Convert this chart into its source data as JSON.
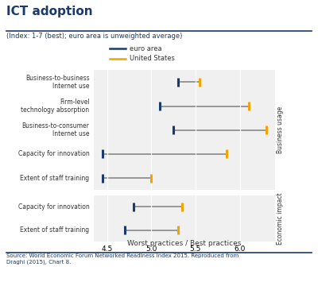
{
  "title": "ICT adoption",
  "subtitle": "(Index: 1-7 (best); euro area is unweighted average)",
  "xlabel": "Worst practices / Best practices",
  "source": "Source: World Economic Forum Networked Readiness Index 2015. Reproduced from\nDraghi (2015), Chart 8.",
  "legend": {
    "euro_area": "euro area",
    "us": "United States"
  },
  "euro_color": "#1a3a6b",
  "us_color": "#f0a500",
  "line_color": "#888888",
  "xlim": [
    4.35,
    6.4
  ],
  "xticks": [
    4.5,
    5.0,
    5.5,
    6.0
  ],
  "xticklabels": [
    "4.5",
    "5.0",
    "5.5",
    "6.0"
  ],
  "sections": [
    {
      "label": "Business usage",
      "rows": [
        {
          "name": "Business-to-business\nInternet use",
          "euro": 5.3,
          "us": 5.55
        },
        {
          "name": "Firm-level\ntechnology absorption",
          "euro": 5.1,
          "us": 6.1
        },
        {
          "name": "Business-to-consumer\nInternet use",
          "euro": 5.25,
          "us": 6.3
        },
        {
          "name": "Capacity for innovation",
          "euro": 4.45,
          "us": 5.85
        },
        {
          "name": "Extent of staff training",
          "euro": 4.45,
          "us": 5.0
        }
      ]
    },
    {
      "label": "Economic impact",
      "rows": [
        {
          "name": "Capacity for innovation",
          "euro": 4.8,
          "us": 5.35
        },
        {
          "name": "Extent of staff training",
          "euro": 4.7,
          "us": 5.3
        }
      ]
    }
  ],
  "bg_color": "#ffffff",
  "plot_bg": "#f0f0f0",
  "title_color": "#1a3a6b",
  "subtitle_color": "#1a3a6b",
  "source_color": "#1a3a6b"
}
